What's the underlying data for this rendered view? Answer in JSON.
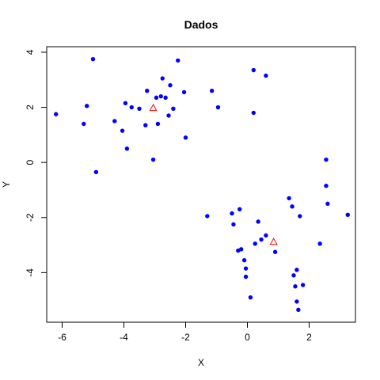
{
  "chart_data": {
    "type": "scatter",
    "title": "Dados",
    "xlabel": "X",
    "ylabel": "Y",
    "xlim": [
      -6.5,
      3.5
    ],
    "ylim": [
      -5.8,
      4.2
    ],
    "xticks": [
      -6,
      -4,
      -2,
      0,
      2
    ],
    "yticks": [
      -4,
      -2,
      0,
      2,
      4
    ],
    "grid": false,
    "colors": {
      "points": "#0000ff",
      "centroids": "#ff0000",
      "frame": "#000000"
    },
    "series": [
      {
        "marker": "filled-circle",
        "points": [
          [
            -6.2,
            1.75
          ],
          [
            -5.3,
            1.4
          ],
          [
            -5.2,
            2.05
          ],
          [
            -5.0,
            3.75
          ],
          [
            -4.9,
            -0.35
          ],
          [
            -4.3,
            1.5
          ],
          [
            -4.05,
            1.15
          ],
          [
            -3.95,
            2.15
          ],
          [
            -3.9,
            0.5
          ],
          [
            -3.75,
            2.0
          ],
          [
            -3.5,
            1.95
          ],
          [
            -3.3,
            1.35
          ],
          [
            -3.25,
            2.6
          ],
          [
            -3.05,
            0.1
          ],
          [
            -2.95,
            2.35
          ],
          [
            -2.9,
            1.4
          ],
          [
            -2.8,
            2.4
          ],
          [
            -2.75,
            3.05
          ],
          [
            -2.65,
            2.35
          ],
          [
            -2.55,
            1.7
          ],
          [
            -2.5,
            2.8
          ],
          [
            -2.4,
            1.95
          ],
          [
            -2.25,
            3.7
          ],
          [
            -2.05,
            2.55
          ],
          [
            -2.0,
            0.9
          ],
          [
            -1.15,
            2.6
          ],
          [
            -0.95,
            2.0
          ],
          [
            0.2,
            3.35
          ],
          [
            0.2,
            1.8
          ],
          [
            0.6,
            3.15
          ],
          [
            -1.3,
            -1.95
          ],
          [
            -0.5,
            -1.85
          ],
          [
            -0.45,
            -2.25
          ],
          [
            -0.3,
            -3.2
          ],
          [
            -0.25,
            -1.7
          ],
          [
            -0.2,
            -3.15
          ],
          [
            -0.1,
            -3.55
          ],
          [
            -0.05,
            -3.85
          ],
          [
            -0.05,
            -4.15
          ],
          [
            0.1,
            -4.9
          ],
          [
            0.25,
            -2.95
          ],
          [
            0.35,
            -2.15
          ],
          [
            0.45,
            -2.8
          ],
          [
            0.6,
            -2.65
          ],
          [
            0.9,
            -3.25
          ],
          [
            1.35,
            -1.3
          ],
          [
            1.45,
            -1.6
          ],
          [
            1.5,
            -4.1
          ],
          [
            1.55,
            -4.5
          ],
          [
            1.6,
            -3.9
          ],
          [
            1.6,
            -5.05
          ],
          [
            1.65,
            -5.35
          ],
          [
            1.7,
            -1.95
          ],
          [
            1.8,
            -4.45
          ],
          [
            2.35,
            -2.95
          ],
          [
            2.55,
            0.1
          ],
          [
            2.55,
            -0.85
          ],
          [
            2.6,
            -1.5
          ],
          [
            3.25,
            -1.9
          ]
        ]
      },
      {
        "marker": "open-triangle",
        "points": [
          [
            -3.05,
            1.98
          ],
          [
            0.85,
            -2.88
          ]
        ]
      }
    ]
  }
}
